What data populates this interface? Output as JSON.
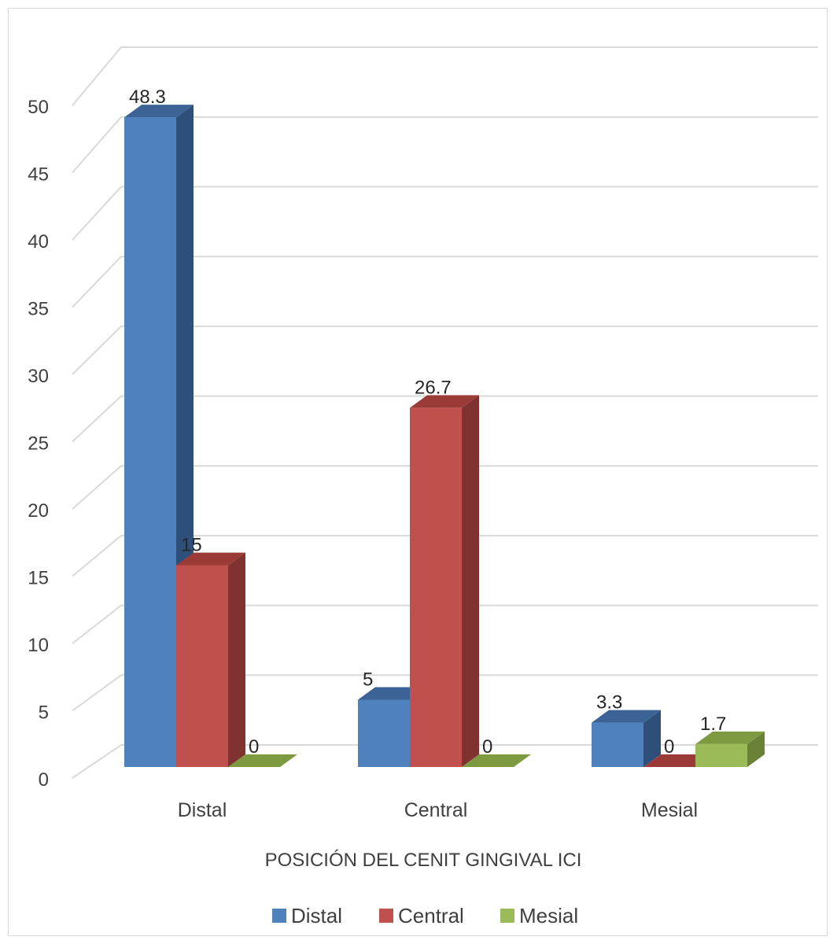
{
  "chart_data": {
    "type": "bar",
    "style": "3d-clustered-column",
    "categories": [
      "Distal",
      "Central",
      "Mesial"
    ],
    "series": [
      {
        "name": "Distal",
        "values": [
          48.3,
          5,
          3.3
        ],
        "color": "#4f81bd",
        "side": "#2f4f7b",
        "top": "#3c6395"
      },
      {
        "name": "Central",
        "values": [
          15,
          26.7,
          0
        ],
        "color": "#c0504d",
        "side": "#7f3230",
        "top": "#9b3b38"
      },
      {
        "name": "Mesial",
        "values": [
          0,
          0,
          1.7
        ],
        "color": "#9bbb59",
        "side": "#6a8237",
        "top": "#7d9a40"
      }
    ],
    "data_labels": [
      [
        "48.3",
        "5",
        "3.3"
      ],
      [
        "15",
        "26.7",
        "0"
      ],
      [
        "0",
        "0",
        "1.7"
      ]
    ],
    "xlabel": "POSICIÓN DEL CENIT GINGIVAL ICI",
    "ylabel": "",
    "ylim": [
      0,
      50
    ],
    "yticks": [
      "0",
      "5",
      "10",
      "15",
      "20",
      "25",
      "30",
      "35",
      "40",
      "45",
      "50"
    ],
    "grid": true,
    "legend": "bottom"
  }
}
